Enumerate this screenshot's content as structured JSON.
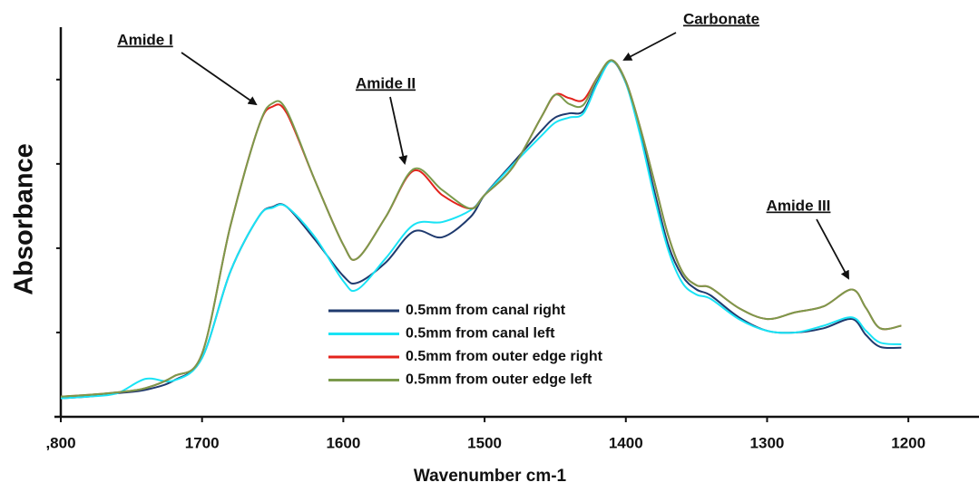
{
  "chart_data": {
    "type": "line",
    "x_label": "Wavenumber cm-1",
    "y_label": "Absorbance",
    "x": [
      1800,
      1780,
      1760,
      1740,
      1720,
      1700,
      1680,
      1660,
      1650,
      1640,
      1620,
      1600,
      1590,
      1570,
      1550,
      1530,
      1510,
      1500,
      1480,
      1460,
      1450,
      1440,
      1430,
      1420,
      1410,
      1400,
      1390,
      1380,
      1370,
      1360,
      1350,
      1340,
      1320,
      1300,
      1280,
      1260,
      1240,
      1230,
      1220,
      1205
    ],
    "series": [
      {
        "name": "0.5mm from canal right",
        "color": "#1f3a6e",
        "values": [
          0.22,
          0.24,
          0.28,
          0.32,
          0.43,
          0.7,
          1.72,
          2.37,
          2.49,
          2.49,
          2.1,
          1.67,
          1.59,
          1.83,
          2.2,
          2.13,
          2.37,
          2.63,
          3.01,
          3.39,
          3.55,
          3.6,
          3.63,
          3.98,
          4.22,
          3.96,
          3.39,
          2.69,
          2.04,
          1.67,
          1.51,
          1.44,
          1.18,
          1.02,
          1.0,
          1.05,
          1.16,
          0.97,
          0.83,
          0.82
        ]
      },
      {
        "name": "0.5mm from canal left",
        "color": "#19e3f5",
        "values": [
          0.22,
          0.24,
          0.28,
          0.45,
          0.43,
          0.7,
          1.72,
          2.37,
          2.48,
          2.49,
          2.13,
          1.61,
          1.51,
          1.88,
          2.28,
          2.31,
          2.45,
          2.63,
          2.99,
          3.33,
          3.49,
          3.55,
          3.6,
          3.96,
          4.22,
          3.96,
          3.35,
          2.62,
          1.98,
          1.59,
          1.45,
          1.4,
          1.16,
          1.02,
          1.0,
          1.08,
          1.18,
          1.02,
          0.88,
          0.86
        ]
      },
      {
        "name": "0.5mm from outer edge right",
        "color": "#e3231c",
        "values": [
          0.24,
          0.26,
          0.29,
          0.34,
          0.48,
          0.75,
          2.26,
          3.44,
          3.68,
          3.6,
          2.8,
          2.04,
          1.88,
          2.37,
          2.92,
          2.63,
          2.47,
          2.63,
          2.96,
          3.55,
          3.82,
          3.78,
          3.76,
          4.03,
          4.23,
          3.98,
          3.44,
          2.8,
          2.15,
          1.72,
          1.56,
          1.53,
          1.29,
          1.16,
          1.24,
          1.31,
          1.51,
          1.29,
          1.05,
          1.08
        ]
      },
      {
        "name": "0.5mm from outer edge left",
        "color": "#7b9a4c",
        "values": [
          0.24,
          0.26,
          0.29,
          0.34,
          0.48,
          0.75,
          2.26,
          3.44,
          3.72,
          3.63,
          2.8,
          2.04,
          1.88,
          2.37,
          2.94,
          2.69,
          2.47,
          2.63,
          2.96,
          3.55,
          3.82,
          3.71,
          3.7,
          4.03,
          4.23,
          3.98,
          3.44,
          2.8,
          2.15,
          1.72,
          1.56,
          1.53,
          1.29,
          1.16,
          1.24,
          1.31,
          1.51,
          1.29,
          1.05,
          1.08
        ]
      }
    ],
    "xlim": [
      1800,
      1150
    ],
    "xticks": [
      {
        "value": 1800,
        "label": ",800"
      },
      1700,
      1600,
      1500,
      1400,
      1300,
      1200
    ],
    "ylim": [
      0,
      4.6
    ],
    "yticks": [
      1,
      2,
      3,
      4
    ],
    "legend": "center",
    "annotations": [
      "Amide I",
      "Amide II",
      "Carbonate",
      "Amide III"
    ]
  }
}
